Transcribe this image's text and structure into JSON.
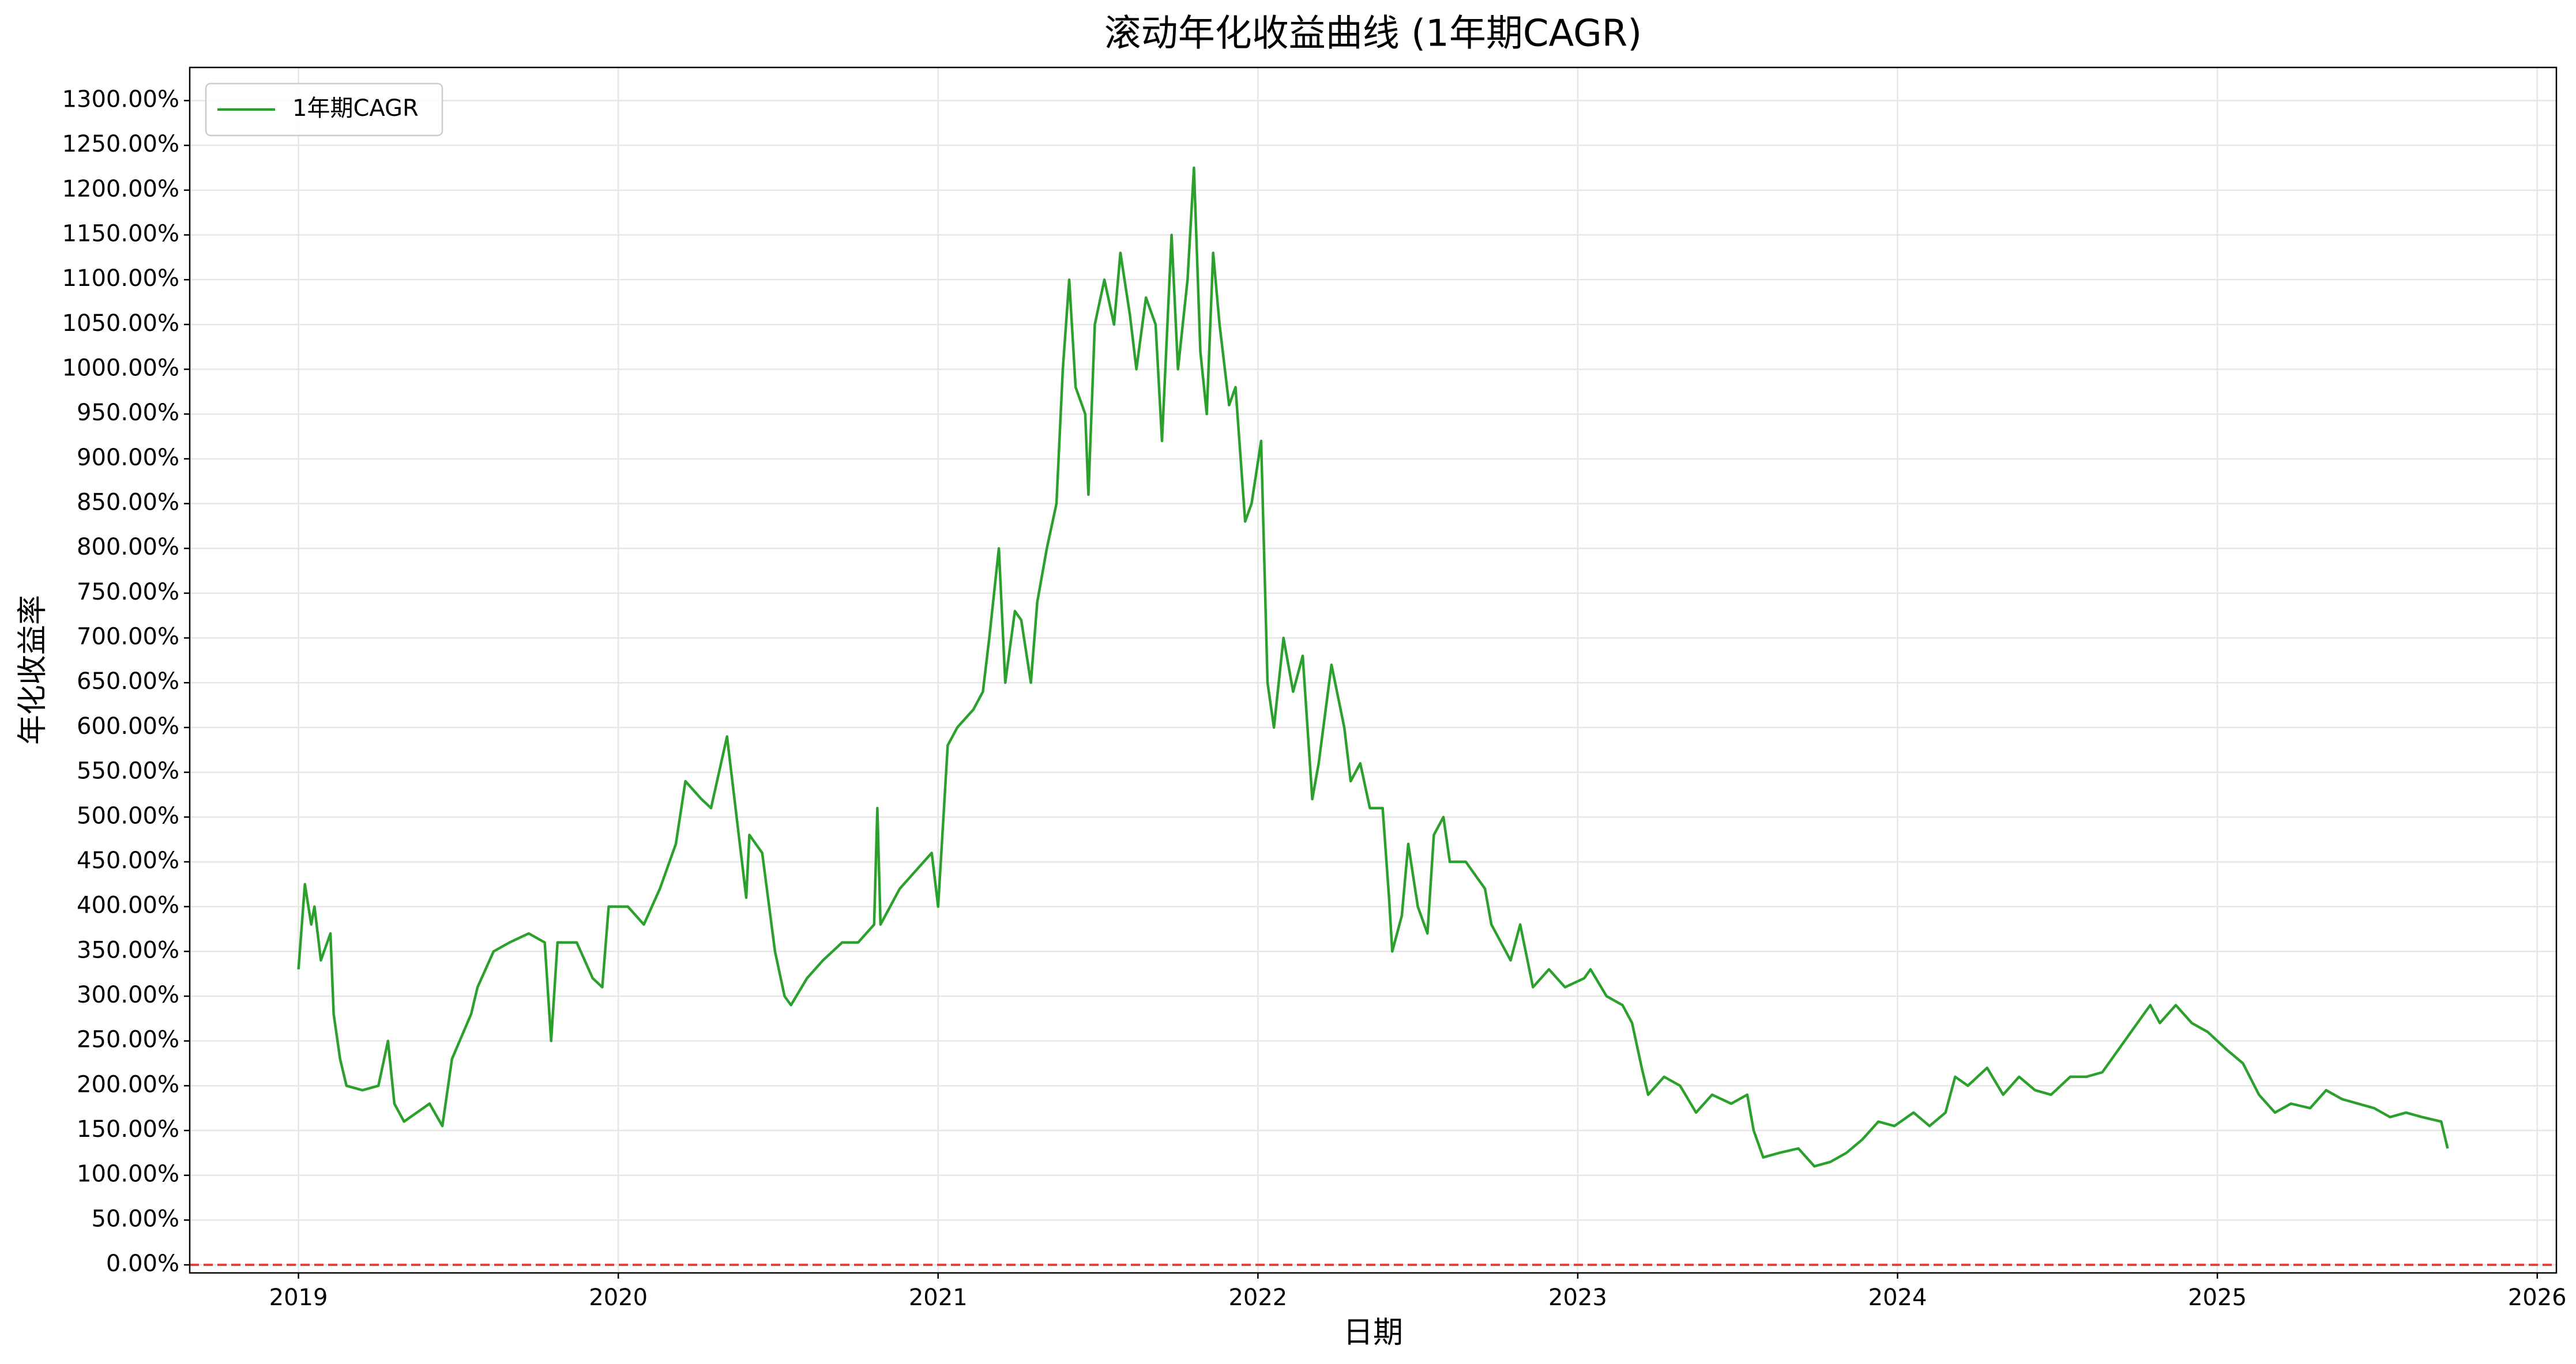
{
  "chart_data": {
    "type": "line",
    "title": "滚动年化收益曲线 (1年期CAGR)",
    "xlabel": "日期",
    "ylabel": "年化收益率",
    "legend": "upper left",
    "grid": true,
    "hline": {
      "value": 0,
      "color": "#e8413c"
    },
    "xlim": [
      2018.66,
      2026.06
    ],
    "xticks": [
      2019,
      2020,
      2021,
      2022,
      2023,
      2024,
      2025,
      2026
    ],
    "ylim": [
      -9,
      1337
    ],
    "yticks": [
      {
        "value": 0,
        "label": "0.00%"
      },
      {
        "value": 50,
        "label": "50.00%"
      },
      {
        "value": 100,
        "label": "100.00%"
      },
      {
        "value": 150,
        "label": "150.00%"
      },
      {
        "value": 200,
        "label": "200.00%"
      },
      {
        "value": 250,
        "label": "250.00%"
      },
      {
        "value": 300,
        "label": "300.00%"
      },
      {
        "value": 350,
        "label": "350.00%"
      },
      {
        "value": 400,
        "label": "400.00%"
      },
      {
        "value": 450,
        "label": "450.00%"
      },
      {
        "value": 500,
        "label": "500.00%"
      },
      {
        "value": 550,
        "label": "550.00%"
      },
      {
        "value": 600,
        "label": "600.00%"
      },
      {
        "value": 650,
        "label": "650.00%"
      },
      {
        "value": 700,
        "label": "700.00%"
      },
      {
        "value": 750,
        "label": "750.00%"
      },
      {
        "value": 800,
        "label": "800.00%"
      },
      {
        "value": 850,
        "label": "850.00%"
      },
      {
        "value": 900,
        "label": "900.00%"
      },
      {
        "value": 950,
        "label": "950.00%"
      },
      {
        "value": 1000,
        "label": "1000.00%"
      },
      {
        "value": 1050,
        "label": "1050.00%"
      },
      {
        "value": 1100,
        "label": "1100.00%"
      },
      {
        "value": 1150,
        "label": "1150.00%"
      },
      {
        "value": 1200,
        "label": "1200.00%"
      },
      {
        "value": 1250,
        "label": "1250.00%"
      },
      {
        "value": 1300,
        "label": "1300.00%"
      }
    ],
    "x": [
      2019.0,
      2019.02,
      2019.04,
      2019.05,
      2019.07,
      2019.1,
      2019.11,
      2019.13,
      2019.15,
      2019.2,
      2019.25,
      2019.28,
      2019.3,
      2019.33,
      2019.41,
      2019.45,
      2019.48,
      2019.54,
      2019.56,
      2019.61,
      2019.66,
      2019.72,
      2019.77,
      2019.79,
      2019.81,
      2019.87,
      2019.92,
      2019.95,
      2019.97,
      2020.03,
      2020.08,
      2020.13,
      2020.18,
      2020.21,
      2020.26,
      2020.29,
      2020.34,
      2020.38,
      2020.4,
      2020.41,
      2020.45,
      2020.49,
      2020.52,
      2020.54,
      2020.59,
      2020.64,
      2020.7,
      2020.75,
      2020.8,
      2020.81,
      2020.82,
      2020.88,
      2020.93,
      2020.98,
      2021.0,
      2021.03,
      2021.06,
      2021.11,
      2021.14,
      2021.16,
      2021.19,
      2021.21,
      2021.24,
      2021.26,
      2021.29,
      2021.31,
      2021.34,
      2021.37,
      2021.39,
      2021.41,
      2021.43,
      2021.46,
      2021.47,
      2021.49,
      2021.52,
      2021.55,
      2021.57,
      2021.6,
      2021.62,
      2021.65,
      2021.68,
      2021.7,
      2021.73,
      2021.75,
      2021.78,
      2021.8,
      2021.82,
      2021.84,
      2021.86,
      2021.88,
      2021.91,
      2021.93,
      2021.96,
      2021.98,
      2022.01,
      2022.03,
      2022.05,
      2022.08,
      2022.11,
      2022.14,
      2022.17,
      2022.19,
      2022.23,
      2022.27,
      2022.29,
      2022.32,
      2022.35,
      2022.39,
      2022.41,
      2022.42,
      2022.45,
      2022.47,
      2022.5,
      2022.53,
      2022.55,
      2022.58,
      2022.6,
      2022.65,
      2022.71,
      2022.73,
      2022.79,
      2022.82,
      2022.86,
      2022.91,
      2022.96,
      2023.02,
      2023.04,
      2023.09,
      2023.14,
      2023.17,
      2023.2,
      2023.22,
      2023.27,
      2023.32,
      2023.37,
      2023.42,
      2023.48,
      2023.53,
      2023.55,
      2023.58,
      2023.63,
      2023.69,
      2023.74,
      2023.79,
      2023.84,
      2023.89,
      2023.94,
      2023.99,
      2024.05,
      2024.1,
      2024.15,
      2024.18,
      2024.22,
      2024.28,
      2024.33,
      2024.38,
      2024.43,
      2024.48,
      2024.54,
      2024.59,
      2024.64,
      2024.69,
      2024.74,
      2024.79,
      2024.82,
      2024.87,
      2024.92,
      2024.97,
      2025.03,
      2025.08,
      2025.13,
      2025.18,
      2025.23,
      2025.29,
      2025.34,
      2025.39,
      2025.44,
      2025.49,
      2025.54,
      2025.59,
      2025.64,
      2025.7,
      2025.72
    ],
    "series": [
      {
        "name": "1年期CAGR",
        "color": "#2ca02c",
        "values": [
          330,
          425,
          380,
          400,
          340,
          370,
          280,
          230,
          200,
          195,
          200,
          250,
          180,
          160,
          180,
          155,
          230,
          280,
          310,
          350,
          360,
          370,
          360,
          250,
          360,
          360,
          320,
          310,
          400,
          400,
          380,
          420,
          470,
          540,
          520,
          510,
          590,
          470,
          410,
          480,
          460,
          350,
          300,
          290,
          320,
          340,
          360,
          360,
          380,
          510,
          380,
          420,
          440,
          460,
          400,
          580,
          600,
          620,
          640,
          700,
          800,
          650,
          730,
          720,
          650,
          740,
          800,
          850,
          1000,
          1100,
          980,
          950,
          860,
          1050,
          1100,
          1050,
          1130,
          1060,
          1000,
          1080,
          1050,
          920,
          1150,
          1000,
          1100,
          1225,
          1020,
          950,
          1130,
          1050,
          960,
          980,
          830,
          850,
          920,
          650,
          600,
          700,
          640,
          680,
          520,
          560,
          670,
          600,
          540,
          560,
          510,
          510,
          410,
          350,
          390,
          470,
          400,
          370,
          480,
          500,
          450,
          450,
          420,
          380,
          340,
          380,
          310,
          330,
          310,
          320,
          330,
          300,
          290,
          270,
          220,
          190,
          210,
          200,
          170,
          190,
          180,
          190,
          150,
          120,
          125,
          130,
          110,
          115,
          125,
          140,
          160,
          155,
          170,
          155,
          170,
          210,
          200,
          220,
          190,
          210,
          195,
          190,
          210,
          210,
          215,
          240,
          265,
          290,
          270,
          290,
          270,
          260,
          240,
          225,
          190,
          170,
          180,
          175,
          195,
          185,
          180,
          175,
          165,
          170,
          165,
          160,
          130
        ]
      }
    ]
  }
}
